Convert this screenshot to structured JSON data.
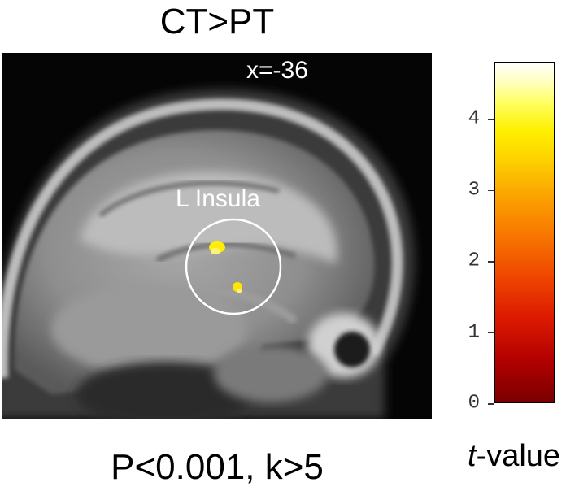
{
  "title": "CT>PT",
  "slice_coordinate": "x=-36",
  "region_label": "L Insula",
  "caption": "P<0.001, k>5",
  "colorbar": {
    "label_italic": "t",
    "label_rest": "-value",
    "ticks": [
      "0",
      "1",
      "2",
      "3",
      "4"
    ],
    "max": 4.8
  },
  "colors": {
    "activation": "#ffee00",
    "roi_circle": "#ffffff"
  }
}
